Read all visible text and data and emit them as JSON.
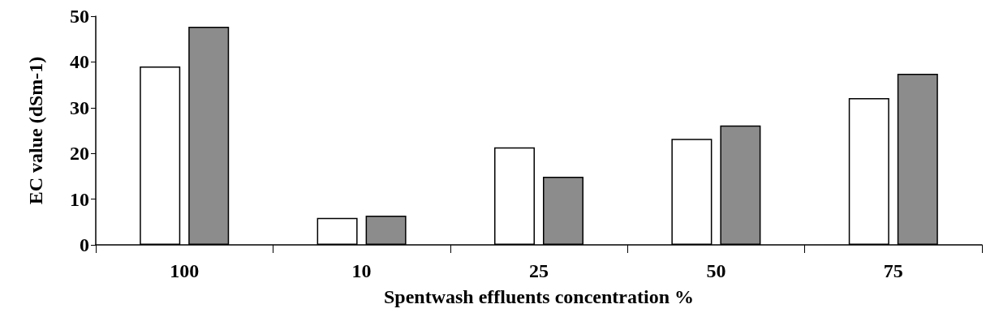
{
  "chart_data": {
    "type": "bar",
    "xlabel": "Spentwash effluents concentration %",
    "ylabel": "EC value (dSm-1)",
    "categories": [
      "100",
      "10",
      "25",
      "50",
      "75"
    ],
    "series": [
      {
        "color": "#ffffff",
        "values": [
          39.0,
          5.9,
          21.3,
          23.2,
          32.1
        ]
      },
      {
        "color": "#8c8c8c",
        "values": [
          47.7,
          6.4,
          14.9,
          26.1,
          37.4
        ]
      }
    ],
    "ylim": [
      0,
      50
    ],
    "yticks": [
      0,
      10,
      20,
      30,
      40,
      50
    ],
    "grid": false
  }
}
